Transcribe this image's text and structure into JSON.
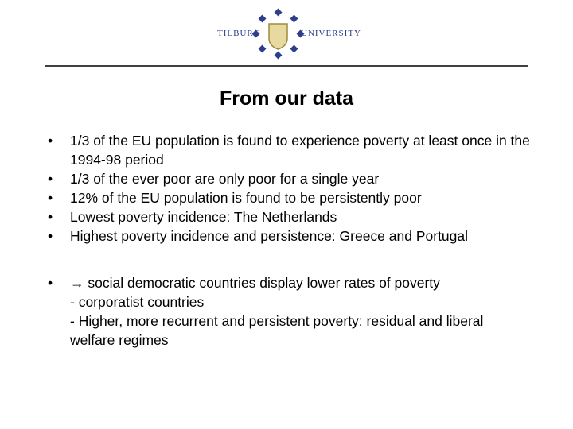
{
  "logo": {
    "left": "TILBURG",
    "right": "UNIVERSITY"
  },
  "title": "From our data",
  "bullets": [
    "1/3 of the EU population is found to experience poverty at least once in the 1994-98 period",
    "1/3 of the ever poor are only poor for a single year",
    "12% of the EU population is found to be persistently poor",
    "Lowest poverty incidence: The Netherlands",
    "Highest poverty incidence and persistence: Greece and Portugal"
  ],
  "conclusion": [
    "→ social democratic countries display lower rates of poverty",
    "- corporatist countries",
    "- Higher, more recurrent and persistent poverty: residual and liberal welfare regimes"
  ]
}
